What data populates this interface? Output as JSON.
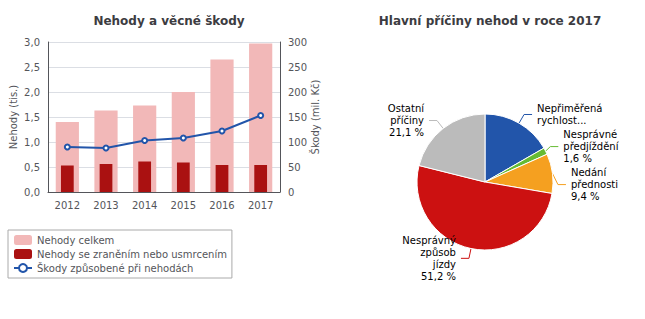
{
  "chart_data": [
    {
      "type": "bar",
      "title": "Nehody a věcné škody",
      "categories": [
        "2012",
        "2013",
        "2014",
        "2015",
        "2016",
        "2017"
      ],
      "ylabel": "Nehody (tis.)",
      "y2label": "Škody (mil. Kč)",
      "series": [
        {
          "name": "Nehody celkem",
          "type": "bar",
          "color": "#f2b8b8",
          "values": [
            1.4,
            1.63,
            1.73,
            2.0,
            2.65,
            2.97
          ]
        },
        {
          "name": "Nehody se zraněním nebo usmrcením",
          "type": "bar",
          "color": "#aa1111",
          "values": [
            0.53,
            0.56,
            0.61,
            0.59,
            0.54,
            0.54
          ]
        },
        {
          "name": "Škody způsobené při nehodách",
          "type": "line",
          "color": "#2255aa",
          "axis": "y2",
          "values": [
            90,
            88,
            103,
            108,
            122,
            153
          ]
        }
      ],
      "ylim": [
        0.0,
        3.0
      ],
      "yticks": [
        {
          "value": 0,
          "label": "0,0"
        },
        {
          "value": 0.5,
          "label": "0,5"
        },
        {
          "value": 1.0,
          "label": "1,0"
        },
        {
          "value": 1.5,
          "label": "1,5"
        },
        {
          "value": 2.0,
          "label": "2,0"
        },
        {
          "value": 2.5,
          "label": "2,5"
        },
        {
          "value": 3.0,
          "label": "3,0"
        }
      ],
      "y2lim": [
        0,
        300
      ],
      "y2ticks": [
        0,
        50,
        100,
        150,
        200,
        250,
        300
      ],
      "grid": true,
      "legend": "lower left"
    },
    {
      "type": "pie",
      "title": "Hlavní příčiny nehod v roce 2017",
      "categories": [
        "Nepřiměřená\nrychlost...",
        "Nesprávné\npředjíždění",
        "Nedání\npřednosti",
        "Nesprávný\nzpůsob\njízdy",
        "Ostatní\npříčiny"
      ],
      "values": [
        16.7,
        1.6,
        9.4,
        51.2,
        21.1
      ],
      "value_labels": [
        null,
        "1,6 %",
        "9,4 %",
        "51,2 %",
        "21,1 %"
      ],
      "colors": [
        "#2255aa",
        "#66bb33",
        "#f5a020",
        "#cc1111",
        "#bbbbbb"
      ]
    }
  ]
}
